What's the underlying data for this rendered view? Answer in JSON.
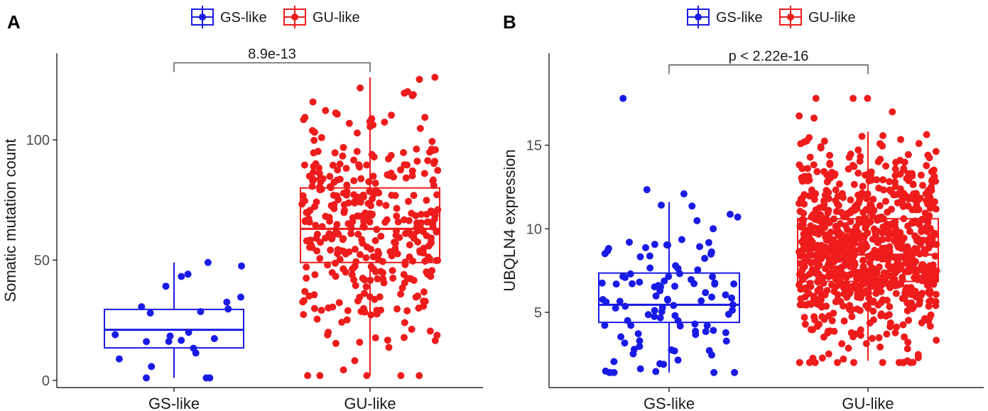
{
  "colors": {
    "gs": "#1a1ae6",
    "gu": "#ee1c1c",
    "axis": "#000000",
    "text": "#1a1a1a"
  },
  "legend": {
    "items": [
      "GS-like",
      "GU-like"
    ]
  },
  "chart_data": [
    {
      "type": "box",
      "panel_label": "A",
      "title": "",
      "xlabel": "",
      "ylabel": "Somatic mutation count",
      "categories": [
        "GS-like",
        "GU-like"
      ],
      "ylim": [
        -3,
        136
      ],
      "yticks": [
        0,
        50,
        100
      ],
      "ytick_labels": [
        "0",
        "50",
        "100"
      ],
      "boxes": [
        {
          "name": "GS-like",
          "q1": 13.5,
          "median": 21,
          "q3": 29.5,
          "whisker_low": 1,
          "whisker_high": 49
        },
        {
          "name": "GU-like",
          "q1": 49,
          "median": 63,
          "q3": 80,
          "whisker_low": 2,
          "whisker_high": 126
        }
      ],
      "significance": {
        "label": "8.9e-13",
        "y": 132
      },
      "points": {
        "GS-like": {
          "n": 25,
          "min": 1,
          "max": 49,
          "mean": 22,
          "sd": 11
        },
        "GU-like": {
          "n": 380,
          "min": 2,
          "max": 126,
          "mean": 64,
          "sd": 24
        }
      }
    },
    {
      "type": "box",
      "panel_label": "B",
      "title": "",
      "xlabel": "",
      "ylabel": "UBQLN4 expression",
      "categories": [
        "GS-like",
        "GU-like"
      ],
      "ylim": [
        0.5,
        20.5
      ],
      "yticks": [
        5,
        10,
        15
      ],
      "ytick_labels": [
        "5",
        "10",
        "15"
      ],
      "boxes": [
        {
          "name": "GS-like",
          "q1": 4.4,
          "median": 5.45,
          "q3": 7.35,
          "whisker_low": 1.4,
          "whisker_high": 11.6
        },
        {
          "name": "GU-like",
          "q1": 6.85,
          "median": 8.45,
          "q3": 10.6,
          "whisker_low": 2.1,
          "whisker_high": 15.8
        }
      ],
      "significance": {
        "label": "p < 2.22e-16",
        "y": 19.8
      },
      "points": {
        "GS-like": {
          "n": 110,
          "min": 1.4,
          "max": 17.8,
          "mean": 6.0,
          "sd": 2.6
        },
        "GU-like": {
          "n": 900,
          "min": 2.0,
          "max": 17.8,
          "mean": 8.8,
          "sd": 3.0
        }
      }
    }
  ]
}
